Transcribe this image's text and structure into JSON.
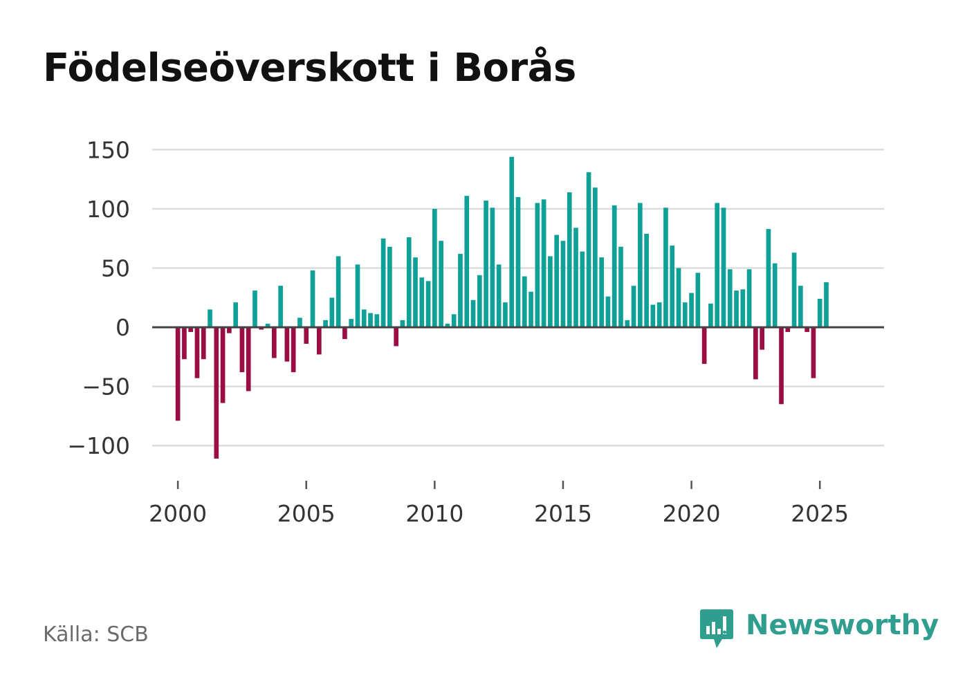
{
  "title": "Födelseöverskott i Borås",
  "source": "Källa: SCB",
  "brand": {
    "name": "Newsworthy",
    "icon": "newsworthy-logo-icon",
    "color": "#2f9e8f"
  },
  "colors": {
    "positive": "#0fa197",
    "negative": "#9b0e43",
    "grid": "#dddddd",
    "zero_line": "#444444",
    "text": "#333333"
  },
  "chart_data": {
    "type": "bar",
    "title": "Födelseöverskott i Borås",
    "xlabel": "",
    "ylabel": "",
    "x_start": 2000,
    "x_step": 0.25,
    "xlim": [
      1999.0,
      2027.5
    ],
    "ylim": [
      -118,
      152
    ],
    "yticks": [
      150,
      100,
      50,
      0,
      -50,
      -100
    ],
    "ytick_labels": [
      "150",
      "100",
      "50",
      "0",
      "−50",
      "−100"
    ],
    "xticks": [
      2000,
      2005,
      2010,
      2015,
      2020,
      2025
    ],
    "xtick_labels": [
      "2000",
      "2005",
      "2010",
      "2015",
      "2020",
      "2025"
    ],
    "grid": true,
    "values": [
      -79,
      -27,
      -4,
      -43,
      -27,
      15,
      -111,
      -64,
      -5,
      21,
      -38,
      -54,
      31,
      -2,
      3,
      -26,
      35,
      -29,
      -38,
      8,
      -14,
      48,
      -23,
      6,
      25,
      60,
      -10,
      7,
      53,
      15,
      12,
      11,
      75,
      68,
      -16,
      6,
      76,
      59,
      42,
      39,
      100,
      73,
      3,
      11,
      62,
      111,
      23,
      44,
      107,
      101,
      53,
      21,
      144,
      110,
      43,
      30,
      105,
      108,
      60,
      78,
      73,
      114,
      84,
      64,
      131,
      118,
      59,
      26,
      103,
      68,
      6,
      35,
      105,
      79,
      19,
      21,
      101,
      69,
      50,
      21,
      29,
      46,
      -31,
      20,
      105,
      101,
      49,
      31,
      32,
      49,
      -44,
      -19,
      83,
      54,
      -65,
      -4,
      63,
      35,
      -4,
      -43,
      24,
      38
    ]
  }
}
